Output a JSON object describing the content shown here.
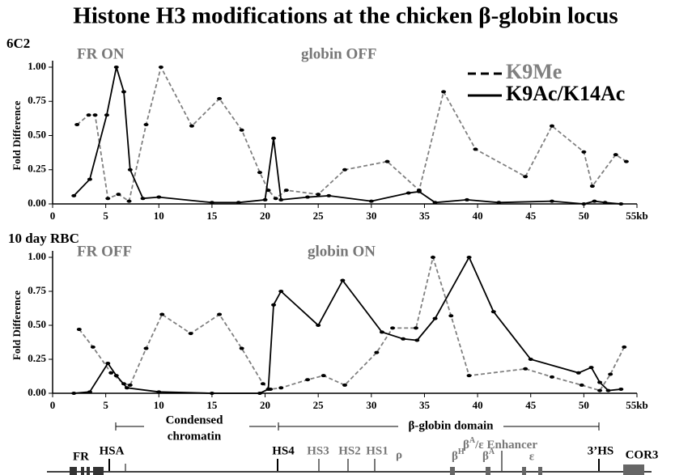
{
  "title": "Histone H3 modifications at the chicken β-globin locus",
  "chart_data": [
    {
      "type": "line",
      "label": "6C2",
      "annotations": [
        "FR ON",
        "globin OFF"
      ],
      "ylabel": "Fold Difference",
      "legend": "top-right",
      "xlim": [
        0,
        55
      ],
      "xticks": [
        0,
        5,
        10,
        15,
        20,
        25,
        30,
        35,
        40,
        45,
        50,
        {
          "value": 55,
          "label": "55kb"
        }
      ],
      "ylim": [
        0,
        1
      ],
      "yticks": [
        {
          "value": 0,
          "label": "0.00"
        },
        {
          "value": 0.25,
          "label": "0.25"
        },
        {
          "value": 0.5,
          "label": "0.50"
        },
        {
          "value": 0.75,
          "label": "0.75"
        },
        {
          "value": 1,
          "label": "1.00"
        }
      ],
      "series": [
        {
          "name": "K9Me",
          "color": "#808080",
          "style": "dashed",
          "x": [
            2.3,
            3.4,
            4.0,
            5.2,
            6.2,
            7.2,
            8.8,
            10.2,
            13.1,
            15.7,
            17.8,
            19.5,
            20.3,
            21.0,
            22.0,
            25.0,
            27.5,
            31.5,
            34.5,
            36.8,
            39.8,
            44.5,
            47.0,
            50.0,
            50.8,
            53.0,
            54.0
          ],
          "values": [
            0.58,
            0.65,
            0.65,
            0.04,
            0.07,
            0.02,
            0.58,
            1.0,
            0.57,
            0.77,
            0.54,
            0.23,
            0.1,
            0.04,
            0.1,
            0.07,
            0.25,
            0.31,
            0.1,
            0.82,
            0.4,
            0.2,
            0.57,
            0.38,
            0.13,
            0.36,
            0.31
          ]
        },
        {
          "name": "K9Ac/K14Ac",
          "color": "#000000",
          "style": "solid",
          "x": [
            2.0,
            3.5,
            5.1,
            6.0,
            6.7,
            7.3,
            8.5,
            10.0,
            15.0,
            17.5,
            20.0,
            20.8,
            21.5,
            24.0,
            26.0,
            30.0,
            33.5,
            34.5,
            36.0,
            39.0,
            42.0,
            47.0,
            50.0,
            51.0,
            52.0,
            53.5
          ],
          "values": [
            0.06,
            0.18,
            0.65,
            1.0,
            0.82,
            0.25,
            0.04,
            0.05,
            0.01,
            0.01,
            0.03,
            0.48,
            0.03,
            0.05,
            0.06,
            0.02,
            0.08,
            0.09,
            0.01,
            0.03,
            0.01,
            0.02,
            0.0,
            0.02,
            0.01,
            0.0
          ]
        }
      ]
    },
    {
      "type": "line",
      "label": "10 day RBC",
      "annotations": [
        "FR OFF",
        "globin ON"
      ],
      "ylabel": "Fold Difference",
      "xlim": [
        0,
        55
      ],
      "xticks": [
        0,
        5,
        10,
        15,
        20,
        25,
        30,
        35,
        40,
        45,
        50,
        {
          "value": 55,
          "label": "55kb"
        }
      ],
      "ylim": [
        0,
        1
      ],
      "yticks": [
        {
          "value": 0,
          "label": "0.00"
        },
        {
          "value": 0.25,
          "label": "0.25"
        },
        {
          "value": 0.5,
          "label": "0.50"
        },
        {
          "value": 0.75,
          "label": "0.75"
        },
        {
          "value": 1,
          "label": "1.00"
        }
      ],
      "series": [
        {
          "color": "#808080",
          "style": "dashed",
          "x": [
            2.5,
            3.8,
            5.5,
            6.7,
            7.3,
            8.8,
            10.3,
            13.0,
            15.7,
            17.8,
            19.8,
            20.5,
            21.5,
            24.0,
            25.5,
            27.5,
            30.5,
            32.0,
            34.2,
            35.8,
            37.5,
            39.2,
            44.5,
            47.0,
            49.8,
            51.5,
            52.5,
            53.8
          ],
          "values": [
            0.47,
            0.34,
            0.15,
            0.07,
            0.06,
            0.33,
            0.58,
            0.44,
            0.58,
            0.33,
            0.07,
            0.03,
            0.04,
            0.1,
            0.13,
            0.06,
            0.3,
            0.48,
            0.48,
            1.0,
            0.57,
            0.13,
            0.18,
            0.12,
            0.06,
            0.02,
            0.14,
            0.34
          ]
        },
        {
          "color": "#000000",
          "style": "solid",
          "x": [
            2.0,
            3.5,
            5.2,
            6.0,
            7.0,
            10.0,
            15.0,
            19.5,
            20.3,
            20.8,
            21.5,
            25.0,
            27.3,
            31.0,
            33.0,
            34.3,
            36.0,
            39.2,
            41.5,
            45.0,
            49.5,
            50.7,
            51.5,
            52.3,
            53.5
          ],
          "values": [
            0.0,
            0.01,
            0.22,
            0.13,
            0.04,
            0.01,
            0.0,
            0.0,
            0.03,
            0.65,
            0.75,
            0.5,
            0.83,
            0.45,
            0.4,
            0.39,
            0.55,
            1.0,
            0.6,
            0.25,
            0.15,
            0.19,
            0.08,
            0.02,
            0.03
          ]
        }
      ]
    }
  ],
  "gene_map": {
    "regions": {
      "condensed": [
        "Condensed",
        "chromatin"
      ],
      "domain": "β-globin domain"
    },
    "labels": {
      "fr": "FR",
      "hsa": "HSA",
      "hs4": "HS4",
      "hs3": "HS3",
      "hs2": "HS2",
      "hs1": "HS1",
      "rho": "ρ",
      "bh": {
        "base": "β",
        "sup": "H"
      },
      "enh": {
        "base": "β",
        "sup": "A",
        "rest": "/ε Enhancer"
      },
      "ba": {
        "base": "β",
        "sup": "A"
      },
      "eps": "ε",
      "hs3p": "3’HS",
      "cor3": "COR3"
    }
  }
}
